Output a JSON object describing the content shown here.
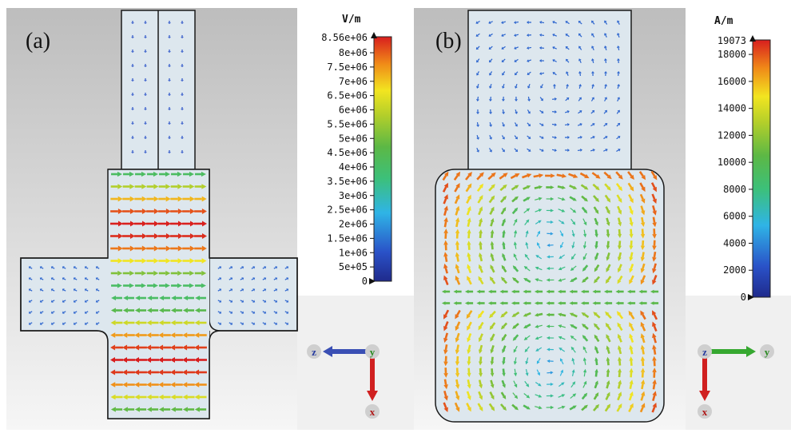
{
  "panel_a": {
    "label": "(a)",
    "unit": "V/m",
    "max_label": "8.56e+06",
    "ticks": [
      "8e+06",
      "7.5e+06",
      "7e+06",
      "6.5e+06",
      "6e+06",
      "5.5e+06",
      "5e+06",
      "4.5e+06",
      "4e+06",
      "3.5e+06",
      "3e+06",
      "2.5e+06",
      "2e+06",
      "1.5e+06",
      "1e+06",
      "5e+05",
      "0"
    ],
    "axes": {
      "horizontal": "z",
      "center": "y",
      "vertical": "x"
    }
  },
  "panel_b": {
    "label": "(b)",
    "unit": "A/m",
    "max_label": "19073",
    "ticks": [
      "18000",
      "16000",
      "14000",
      "12000",
      "10000",
      "8000",
      "6000",
      "4000",
      "2000",
      "0"
    ],
    "axes": {
      "center": "z",
      "horizontal": "y",
      "vertical": "x"
    }
  },
  "colors": {
    "bg_grad_top": "#c2c2c2",
    "bg_grad_bottom": "#f4f4f4",
    "structure_fill": "#dfe8ef",
    "structure_stroke": "#1a1a1a",
    "axis_z_arrow": "#3a4fb4",
    "axis_x_arrow": "#d02020",
    "axis_y_arrow": "#36a830"
  }
}
